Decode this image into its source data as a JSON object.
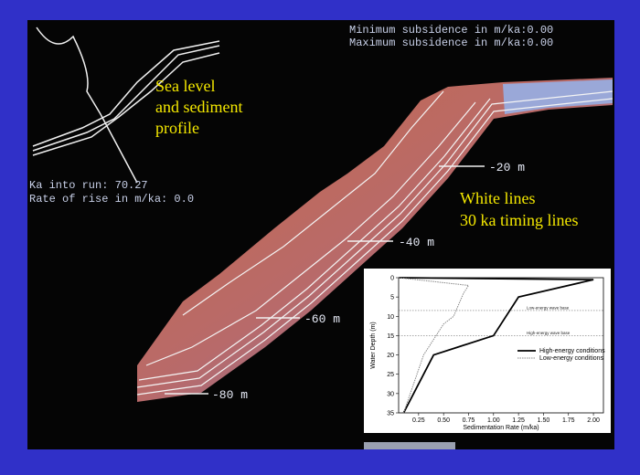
{
  "display": {
    "min_subsidence": "Minimum subsidence in m/ka:0.00",
    "max_subsidence": "Maximum subsidence in m/ka:0.00",
    "ka_into_run": "Ka into run: 70.27",
    "rate_of_rise": "Rate of rise in m/ka:  0.0",
    "depth_labels": [
      "-20 m",
      "-40 m",
      "-60 m",
      "-80 m"
    ],
    "annotation_profile": [
      "Sea level",
      "and sediment",
      "profile"
    ],
    "annotation_lines": [
      "White lines",
      "30 ka timing lines"
    ]
  },
  "chart_data": {
    "type": "line",
    "x_label": "Sedimentation Rate (m/ka)",
    "y_label": "Water Depth (m)",
    "xlim": [
      0.05,
      2.1
    ],
    "ylim": [
      0,
      35
    ],
    "invert_y": true,
    "xticks": [
      0.25,
      {
        "value": 0.5,
        "label": "0.50"
      },
      0.75,
      {
        "value": 1,
        "label": "1.00"
      },
      1.25,
      {
        "value": 1.5,
        "label": "1.50"
      },
      1.75,
      {
        "value": 2,
        "label": "2.00"
      }
    ],
    "yticks": [
      0,
      5,
      10,
      15,
      20,
      25,
      30,
      35
    ],
    "reference_lines": [
      {
        "label": "Low-energy wave base",
        "value": 8.5
      },
      {
        "label": "High-energy wave base",
        "value": 15
      }
    ],
    "series": [
      {
        "name": "High-energy conditions",
        "color": "#000000",
        "dashed": false,
        "x": [
          0.05,
          2.0,
          1.25,
          1.0,
          0.4,
          0.1
        ],
        "values": [
          0,
          0.5,
          5,
          15,
          20,
          35
        ]
      },
      {
        "name": "Low-energy conditions",
        "color": "#888888",
        "dashed": true,
        "x": [
          0.05,
          0.75,
          0.7,
          0.6,
          0.5,
          0.3,
          0.1
        ],
        "values": [
          0,
          2,
          4,
          10,
          12,
          20,
          35
        ]
      }
    ]
  }
}
